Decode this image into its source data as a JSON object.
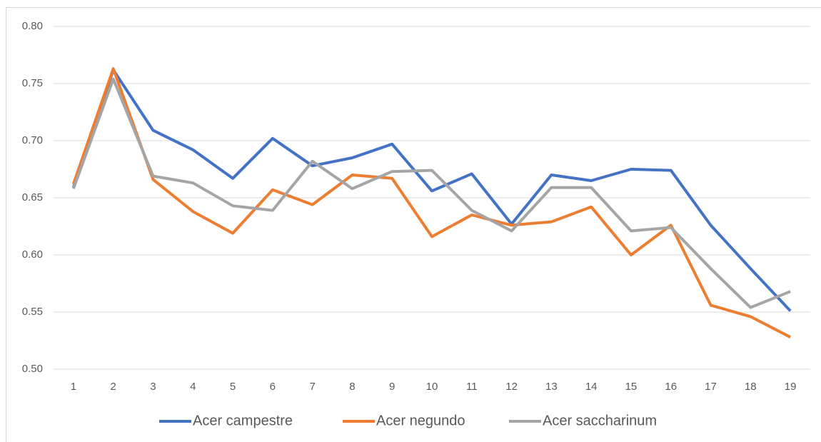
{
  "chart_data": {
    "type": "line",
    "categories": [
      1,
      2,
      3,
      4,
      5,
      6,
      7,
      8,
      9,
      10,
      11,
      12,
      13,
      14,
      15,
      16,
      17,
      18,
      19
    ],
    "series": [
      {
        "name": "Acer campestre",
        "color": "#4472c4",
        "values": [
          0.659,
          0.762,
          0.709,
          0.692,
          0.667,
          0.702,
          0.678,
          0.685,
          0.697,
          0.656,
          0.671,
          0.627,
          0.67,
          0.665,
          0.675,
          0.674,
          0.626,
          0.588,
          0.551
        ]
      },
      {
        "name": "Acer negundo",
        "color": "#ed7d31",
        "values": [
          0.662,
          0.763,
          0.666,
          0.638,
          0.619,
          0.657,
          0.644,
          0.67,
          0.667,
          0.616,
          0.635,
          0.626,
          0.629,
          0.642,
          0.6,
          0.626,
          0.556,
          0.546,
          0.528
        ]
      },
      {
        "name": "Acer saccharinum",
        "color": "#a5a5a5",
        "values": [
          0.658,
          0.754,
          0.669,
          0.663,
          0.643,
          0.639,
          0.682,
          0.658,
          0.673,
          0.674,
          0.639,
          0.621,
          0.659,
          0.659,
          0.621,
          0.624,
          0.588,
          0.554,
          0.568
        ]
      }
    ],
    "ylim": [
      0.5,
      0.8
    ],
    "yticks": [
      {
        "value": 0.5,
        "label": "0.50"
      },
      {
        "value": 0.55,
        "label": "0.55"
      },
      {
        "value": 0.6,
        "label": "0.60"
      },
      {
        "value": 0.65,
        "label": "0.65"
      },
      {
        "value": 0.7,
        "label": "0.70"
      },
      {
        "value": 0.75,
        "label": "0.75"
      },
      {
        "value": 0.8,
        "label": "0.80"
      }
    ],
    "grid": true,
    "legend": "bottom"
  }
}
